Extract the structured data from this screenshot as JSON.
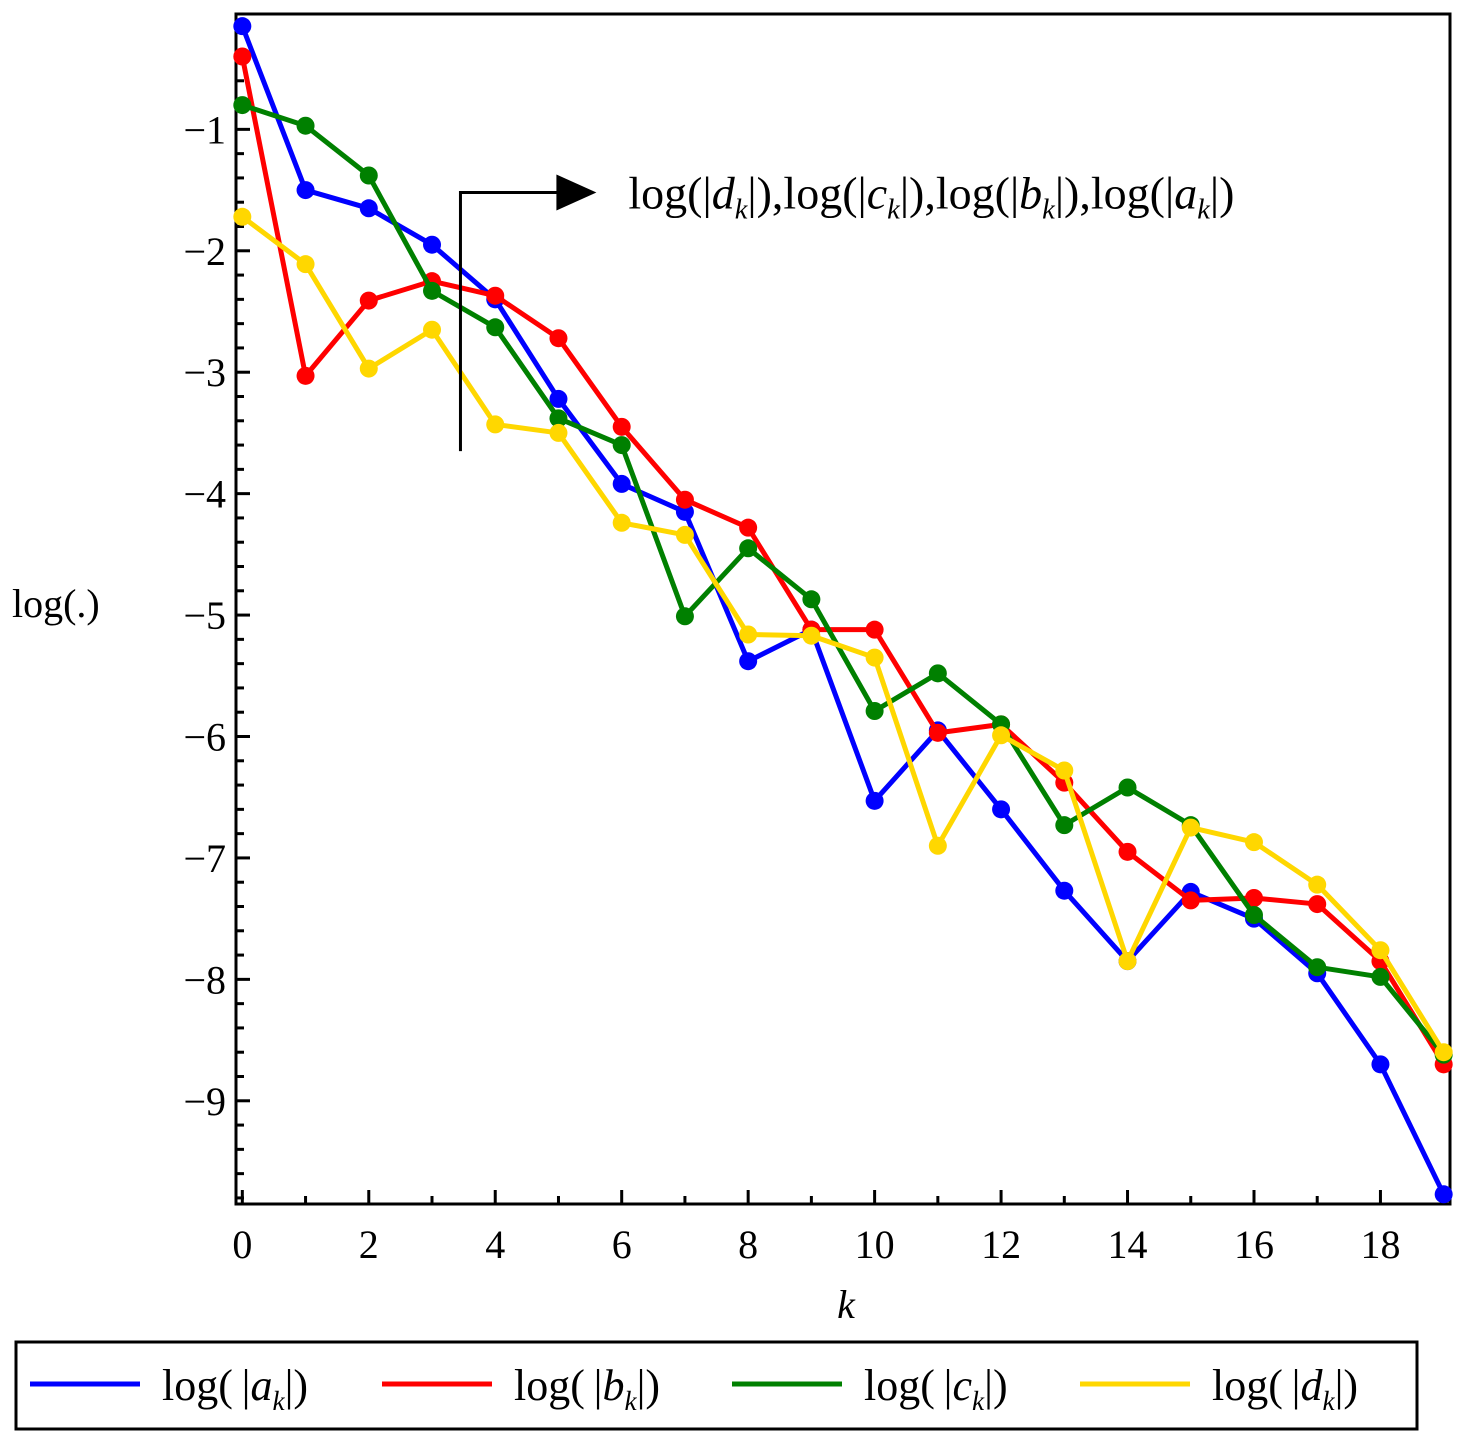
{
  "chart_data": {
    "type": "line",
    "title": "",
    "xlabel": "k",
    "ylabel": "log(.)",
    "xlim": [
      -0.1,
      19.1
    ],
    "ylim": [
      -9.85,
      -0.05
    ],
    "x_ticks": [
      0,
      2,
      4,
      6,
      8,
      10,
      12,
      14,
      16,
      18
    ],
    "x_tick_labels": [
      "0",
      "2",
      "4",
      "6",
      "8",
      "10",
      "12",
      "14",
      "16",
      "18"
    ],
    "y_ticks": [
      -1,
      -2,
      -3,
      -4,
      -5,
      -6,
      -7,
      -8,
      -9
    ],
    "y_tick_labels": [
      "−1",
      "−2",
      "−3",
      "−4",
      "−5",
      "−6",
      "−7",
      "−8",
      "−9"
    ],
    "grid": false,
    "legend_position": "bottom",
    "x": [
      0,
      1,
      2,
      3,
      4,
      5,
      6,
      7,
      8,
      9,
      10,
      11,
      12,
      13,
      14,
      15,
      16,
      17,
      18,
      19
    ],
    "series": [
      {
        "name": "log( |a_k| )",
        "color": "#0000ff",
        "label_parts": {
          "fn": "log(",
          "var": "a",
          "sub": "k",
          "close": ")"
        },
        "values": [
          -0.15,
          -1.5,
          -1.65,
          -1.95,
          -2.4,
          -3.22,
          -3.92,
          -4.15,
          -5.38,
          -5.12,
          -6.53,
          -5.95,
          -6.6,
          -7.27,
          -7.85,
          -7.28,
          -7.5,
          -7.95,
          -8.7,
          -9.77
        ]
      },
      {
        "name": "log( |b_k| )",
        "color": "#ff0000",
        "label_parts": {
          "fn": "log(",
          "var": "b",
          "sub": "k",
          "close": ")"
        },
        "values": [
          -0.4,
          -3.03,
          -2.41,
          -2.25,
          -2.37,
          -2.72,
          -3.45,
          -4.05,
          -4.28,
          -5.12,
          -5.12,
          -5.97,
          -5.9,
          -6.38,
          -6.95,
          -7.35,
          -7.33,
          -7.38,
          -7.85,
          -8.7
        ]
      },
      {
        "name": "log( |c_k| )",
        "color": "#008000",
        "label_parts": {
          "fn": "log(",
          "var": "c",
          "sub": "k",
          "close": ")"
        },
        "values": [
          -0.8,
          -0.97,
          -1.38,
          -2.33,
          -2.63,
          -3.38,
          -3.6,
          -5.01,
          -4.45,
          -4.87,
          -5.79,
          -5.48,
          -5.9,
          -6.73,
          -6.42,
          -6.73,
          -7.47,
          -7.9,
          -7.98,
          -8.62
        ]
      },
      {
        "name": "log( |d_k| )",
        "color": "#ffd700",
        "label_parts": {
          "fn": "log(",
          "var": "d",
          "sub": "k",
          "close": ")"
        },
        "values": [
          -1.72,
          -2.11,
          -2.97,
          -2.65,
          -3.43,
          -3.5,
          -4.24,
          -4.34,
          -5.16,
          -5.17,
          -5.35,
          -6.9,
          -5.99,
          -6.28,
          -7.85,
          -6.75,
          -6.87,
          -7.22,
          -7.76,
          -8.6
        ]
      }
    ],
    "annotation": {
      "text_parts": [
        {
          "fn": "log(",
          "var": "d",
          "sub": "k",
          "close": "),"
        },
        {
          "fn": "log(",
          "var": "c",
          "sub": "k",
          "close": "),"
        },
        {
          "fn": "log(",
          "var": "b",
          "sub": "k",
          "close": "),"
        },
        {
          "fn": "log(",
          "var": "a",
          "sub": "k",
          "close": ")"
        }
      ],
      "arrow_from": {
        "x": 3.45,
        "y": -3.65
      },
      "arrow_corner": {
        "x": 3.45,
        "y": -1.52
      },
      "arrow_to": {
        "x": 5.6,
        "y": -1.52
      }
    }
  }
}
